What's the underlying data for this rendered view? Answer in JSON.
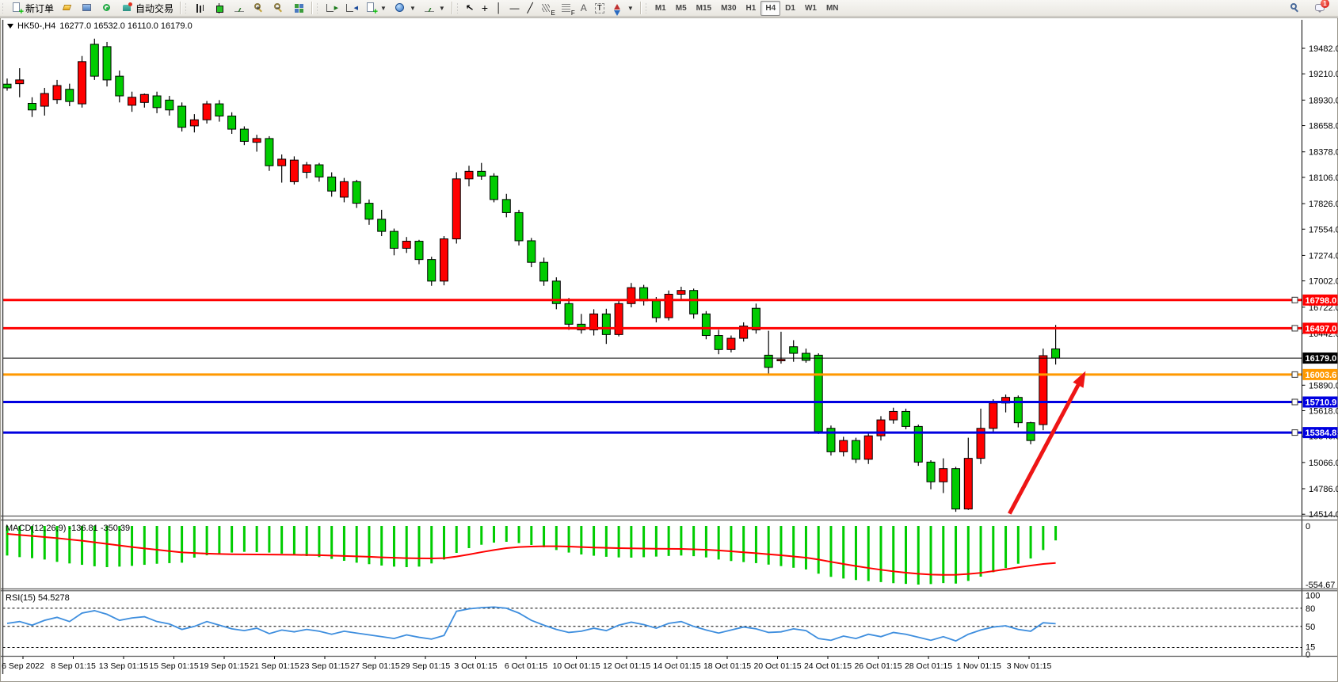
{
  "toolbar": {
    "new_order_label": "新订单",
    "auto_trading_label": "自动交易",
    "notification_count": "1",
    "groups": [
      {
        "items": [
          {
            "name": "new-order",
            "icon": "new-order-icon",
            "label": "新订单"
          },
          {
            "name": "history-center",
            "icon": "data-folder-icon"
          },
          {
            "name": "navigator",
            "icon": "navigator-icon"
          },
          {
            "name": "signals",
            "icon": "signals-icon"
          },
          {
            "name": "auto-trading",
            "icon": "auto-trading-icon",
            "label": "自动交易"
          }
        ]
      },
      {
        "items": [
          {
            "name": "bar-chart",
            "icon": "bar-chart-icon"
          },
          {
            "name": "candlestick-chart",
            "icon": "candlestick-chart-icon"
          },
          {
            "name": "line-chart",
            "icon": "line-chart-icon"
          },
          {
            "name": "zoom-in",
            "icon": "zoom-in-icon"
          },
          {
            "name": "zoom-out",
            "icon": "zoom-out-icon"
          },
          {
            "name": "tile-windows",
            "icon": "tile-windows-icon"
          }
        ]
      },
      {
        "items": [
          {
            "name": "auto-scroll",
            "icon": "auto-scroll-icon"
          },
          {
            "name": "chart-shift",
            "icon": "chart-shift-icon"
          },
          {
            "name": "new-chart",
            "icon": "new-chart-icon",
            "caret": true
          },
          {
            "name": "periods",
            "icon": "period-icon",
            "caret": true
          },
          {
            "name": "templates",
            "icon": "templates-icon",
            "caret": true
          }
        ]
      },
      {
        "items": [
          {
            "name": "cursor",
            "icon": "cursor-icon"
          },
          {
            "name": "crosshair",
            "icon": "crosshair-icon"
          },
          {
            "name": "vertical-line",
            "icon": "vertical-line-icon"
          },
          {
            "name": "horizontal-line",
            "icon": "horizontal-line-icon"
          },
          {
            "name": "trendline",
            "icon": "trendline-icon"
          },
          {
            "name": "equidistant-channel",
            "icon": "equidistant-channel-icon"
          },
          {
            "name": "fibonacci",
            "icon": "fibonacci-icon"
          },
          {
            "name": "text",
            "icon": "text-icon"
          },
          {
            "name": "text-label",
            "icon": "text-label-icon"
          },
          {
            "name": "arrows",
            "icon": "arrows-icon",
            "caret": true
          }
        ]
      }
    ],
    "timeframes": [
      "M1",
      "M5",
      "M15",
      "M30",
      "H1",
      "H4",
      "D1",
      "W1",
      "MN"
    ],
    "active_timeframe": "H4"
  },
  "chart_header": {
    "symbol_period": "HK50-,H4",
    "ohlc_text": "16277.0 16532.0 16110.0 16179.0"
  },
  "chart_data": {
    "type": "candlestick",
    "symbol": "HK50-",
    "timeframe": "H4",
    "last_bar": {
      "open": 16277.0,
      "high": 16532.0,
      "low": 16110.0,
      "close": 16179.0
    },
    "up_color": "#FF0000",
    "down_color": "#00CC00",
    "price_axis_ticks": [
      19482.0,
      19210.0,
      18930.0,
      18658.0,
      18378.0,
      18106.0,
      17826.0,
      17554.0,
      17274.0,
      17002.0,
      16722.0,
      16442.0,
      15890.0,
      15618.0,
      15346.0,
      15066.0,
      14786.0,
      14514.0
    ],
    "x_axis_labels": [
      "6 Sep 2022",
      "8 Sep 01:15",
      "13 Sep 01:15",
      "15 Sep 01:15",
      "19 Sep 01:15",
      "21 Sep 01:15",
      "23 Sep 01:15",
      "27 Sep 01:15",
      "29 Sep 01:15",
      "3 Oct 01:15",
      "6 Oct 01:15",
      "10 Oct 01:15",
      "12 Oct 01:15",
      "14 Oct 01:15",
      "18 Oct 01:15",
      "20 Oct 01:15",
      "24 Oct 01:15",
      "26 Oct 01:15",
      "28 Oct 01:15",
      "1 Nov 01:15",
      "3 Nov 01:15"
    ],
    "horizontal_lines": [
      {
        "price": 16798.0,
        "label": "16798.0",
        "color": "#FF0000"
      },
      {
        "price": 16497.0,
        "label": "16497.0",
        "color": "#FF0000"
      },
      {
        "price": 16003.6,
        "label": "16003.6",
        "color": "#FF9900"
      },
      {
        "price": 15710.9,
        "label": "15710.9",
        "color": "#0000E0"
      },
      {
        "price": 15384.8,
        "label": "15384.8",
        "color": "#0000E0"
      }
    ],
    "current_price": {
      "value": 16179.0,
      "label": "16179.0",
      "color": "#000000"
    },
    "arrow_annotation": {
      "from_index": 80.3,
      "from_price": 14520,
      "to_index": 86.4,
      "to_price": 16040,
      "color": "#EE1515"
    },
    "candles": [
      [
        19100,
        19160,
        19030,
        19060
      ],
      [
        19105,
        19270,
        18960,
        19145
      ],
      [
        18895,
        18960,
        18750,
        18825
      ],
      [
        18865,
        19060,
        18765,
        19000
      ],
      [
        18935,
        19145,
        18890,
        19085
      ],
      [
        19045,
        19105,
        18865,
        18915
      ],
      [
        18890,
        19400,
        18850,
        19340
      ],
      [
        19525,
        19585,
        19145,
        19185
      ],
      [
        19500,
        19550,
        19075,
        19145
      ],
      [
        19185,
        19245,
        18905,
        18975
      ],
      [
        18875,
        19020,
        18805,
        18960
      ],
      [
        18905,
        19000,
        18850,
        18990
      ],
      [
        18975,
        19020,
        18790,
        18850
      ],
      [
        18930,
        18975,
        18765,
        18825
      ],
      [
        18865,
        18905,
        18595,
        18640
      ],
      [
        18655,
        18780,
        18585,
        18720
      ],
      [
        18720,
        18920,
        18680,
        18890
      ],
      [
        18890,
        18930,
        18700,
        18760
      ],
      [
        18760,
        18800,
        18570,
        18620
      ],
      [
        18620,
        18650,
        18450,
        18490
      ],
      [
        18480,
        18560,
        18380,
        18520
      ],
      [
        18520,
        18545,
        18175,
        18230
      ],
      [
        18230,
        18350,
        18050,
        18300
      ],
      [
        18060,
        18330,
        18030,
        18290
      ],
      [
        18160,
        18270,
        18095,
        18240
      ],
      [
        18240,
        18260,
        18060,
        18110
      ],
      [
        18110,
        18160,
        17900,
        17960
      ],
      [
        17895,
        18100,
        17840,
        18060
      ],
      [
        18060,
        18080,
        17780,
        17830
      ],
      [
        17830,
        17870,
        17600,
        17660
      ],
      [
        17660,
        17760,
        17480,
        17530
      ],
      [
        17530,
        17560,
        17275,
        17350
      ],
      [
        17350,
        17470,
        17300,
        17425
      ],
      [
        17425,
        17440,
        17180,
        17230
      ],
      [
        17230,
        17260,
        16950,
        17000
      ],
      [
        17000,
        17480,
        16955,
        17450
      ],
      [
        17450,
        18160,
        17400,
        18090
      ],
      [
        18090,
        18230,
        18010,
        18170
      ],
      [
        18170,
        18260,
        18080,
        18120
      ],
      [
        18120,
        18150,
        17840,
        17870
      ],
      [
        17870,
        17930,
        17680,
        17730
      ],
      [
        17730,
        17760,
        17380,
        17430
      ],
      [
        17430,
        17460,
        17150,
        17200
      ],
      [
        17200,
        17250,
        16950,
        17000
      ],
      [
        17000,
        17040,
        16700,
        16760
      ],
      [
        16760,
        16820,
        16480,
        16540
      ],
      [
        16540,
        16650,
        16440,
        16480
      ],
      [
        16480,
        16700,
        16420,
        16650
      ],
      [
        16650,
        16705,
        16330,
        16430
      ],
      [
        16430,
        16800,
        16410,
        16760
      ],
      [
        16760,
        16980,
        16720,
        16930
      ],
      [
        16930,
        16960,
        16740,
        16790
      ],
      [
        16790,
        16830,
        16560,
        16610
      ],
      [
        16610,
        16900,
        16580,
        16860
      ],
      [
        16860,
        16940,
        16795,
        16900
      ],
      [
        16900,
        16920,
        16600,
        16650
      ],
      [
        16650,
        16680,
        16380,
        16420
      ],
      [
        16420,
        16480,
        16220,
        16270
      ],
      [
        16270,
        16420,
        16240,
        16390
      ],
      [
        16390,
        16560,
        16355,
        16520
      ],
      [
        16710,
        16760,
        16440,
        16480
      ],
      [
        16210,
        16470,
        16000,
        16080
      ],
      [
        16150,
        16460,
        16120,
        16165
      ],
      [
        16300,
        16370,
        16140,
        16230
      ],
      [
        16230,
        16280,
        16130,
        16155
      ],
      [
        16210,
        16230,
        15370,
        15395
      ],
      [
        15430,
        15460,
        15140,
        15180
      ],
      [
        15180,
        15340,
        15130,
        15300
      ],
      [
        15300,
        15330,
        15060,
        15100
      ],
      [
        15100,
        15390,
        15050,
        15350
      ],
      [
        15350,
        15560,
        15300,
        15520
      ],
      [
        15520,
        15650,
        15480,
        15610
      ],
      [
        15610,
        15640,
        15420,
        15450
      ],
      [
        15450,
        15470,
        15030,
        15070
      ],
      [
        15070,
        15090,
        14780,
        14860
      ],
      [
        14860,
        15110,
        14740,
        15000
      ],
      [
        15000,
        15020,
        14540,
        14570
      ],
      [
        14570,
        15330,
        14560,
        15110
      ],
      [
        15110,
        15640,
        15050,
        15430
      ],
      [
        15430,
        15740,
        15380,
        15700
      ],
      [
        15700,
        15790,
        15600,
        15760
      ],
      [
        15760,
        15780,
        15440,
        15490
      ],
      [
        15490,
        15500,
        15260,
        15300
      ],
      [
        15470,
        16280,
        15410,
        16205
      ],
      [
        16277,
        16532,
        16110,
        16179
      ]
    ],
    "indicators": {
      "macd": {
        "label": "MACD(12,26,9)",
        "values_text": "-136.81 -350.39",
        "main_value": -136.81,
        "signal_value": -350.39,
        "scale_labels": [
          "0",
          "-554.67"
        ],
        "scale_max": 0,
        "scale_min": -554.67,
        "histogram_color": "#00CC00",
        "signal_color": "#FF0000",
        "histogram": [
          -280,
          -295,
          -305,
          -318,
          -340,
          -355,
          -368,
          -382,
          -390,
          -385,
          -378,
          -368,
          -358,
          -352,
          -348,
          -300,
          -278,
          -262,
          -252,
          -245,
          -248,
          -252,
          -262,
          -275,
          -285,
          -295,
          -312,
          -330,
          -348,
          -362,
          -375,
          -385,
          -390,
          -385,
          -355,
          -318,
          -255,
          -210,
          -178,
          -158,
          -150,
          -162,
          -180,
          -202,
          -228,
          -252,
          -270,
          -282,
          -292,
          -298,
          -300,
          -296,
          -290,
          -284,
          -280,
          -286,
          -298,
          -318,
          -332,
          -342,
          -352,
          -366,
          -380,
          -396,
          -412,
          -452,
          -482,
          -498,
          -512,
          -522,
          -532,
          -542,
          -549,
          -554.67,
          -550,
          -541,
          -546,
          -520,
          -480,
          -438,
          -398,
          -358,
          -308,
          -228,
          -136.81
        ],
        "signal": [
          -75,
          -85,
          -95,
          -105,
          -115,
          -128,
          -140,
          -155,
          -170,
          -185,
          -200,
          -213,
          -225,
          -238,
          -250,
          -256,
          -262,
          -265,
          -268,
          -269,
          -270,
          -271,
          -272,
          -273,
          -275,
          -277,
          -280,
          -284,
          -288,
          -292,
          -297,
          -301,
          -305,
          -307,
          -308,
          -305,
          -290,
          -270,
          -248,
          -228,
          -210,
          -200,
          -195,
          -192,
          -192,
          -195,
          -200,
          -204,
          -207,
          -210,
          -212,
          -214,
          -216,
          -217,
          -218,
          -221,
          -225,
          -232,
          -240,
          -249,
          -258,
          -268,
          -278,
          -289,
          -300,
          -318,
          -340,
          -360,
          -380,
          -398,
          -415,
          -430,
          -443,
          -453,
          -460,
          -463,
          -462,
          -455,
          -444,
          -428,
          -410,
          -392,
          -375,
          -360,
          -350.39
        ]
      },
      "rsi": {
        "label": "RSI(15)",
        "value_text": "54.5278",
        "value": 54.5278,
        "levels": [
          80,
          50,
          15
        ],
        "scale_labels": [
          "100",
          "80",
          "50",
          "15",
          "0"
        ],
        "line_color": "#3E8EDE",
        "values": [
          55,
          58,
          52,
          60,
          65,
          58,
          72,
          76,
          70,
          60,
          64,
          66,
          58,
          54,
          45,
          50,
          58,
          52,
          46,
          43,
          47,
          38,
          44,
          41,
          45,
          42,
          37,
          42,
          39,
          36,
          33,
          30,
          36,
          32,
          29,
          35,
          75,
          79,
          81,
          82,
          80,
          72,
          60,
          52,
          45,
          40,
          42,
          47,
          43,
          52,
          57,
          53,
          47,
          55,
          58,
          50,
          44,
          39,
          44,
          49,
          46,
          40,
          41,
          46,
          43,
          30,
          27,
          34,
          30,
          37,
          33,
          40,
          37,
          32,
          27,
          33,
          26,
          37,
          44,
          49,
          51,
          45,
          42,
          56,
          54.53
        ]
      }
    }
  }
}
